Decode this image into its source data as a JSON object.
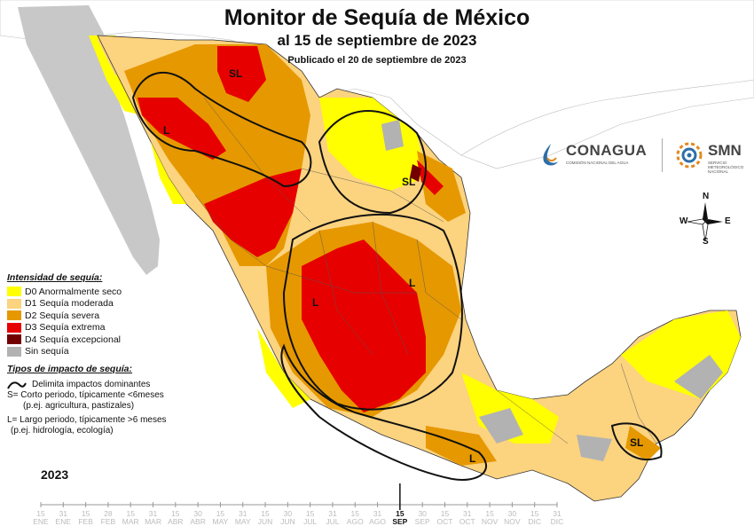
{
  "header": {
    "title": "Monitor de Sequía de México",
    "subtitle": "al 15 de septiembre de 2023",
    "published": "Publicado el 20 de septiembre de 2023"
  },
  "legend": {
    "title": "Intensidad de sequía:",
    "items": [
      {
        "label": "D0 Anormalmente seco",
        "color": "#FFFF00"
      },
      {
        "label": "D1 Sequía moderada",
        "color": "#FCD37F"
      },
      {
        "label": "D2 Sequía severa",
        "color": "#E69800"
      },
      {
        "label": "D3 Sequía extrema",
        "color": "#E60000"
      },
      {
        "label": "D4 Sequía excepcional",
        "color": "#730000"
      },
      {
        "label": "Sin sequía",
        "color": "#B2B2B2"
      }
    ]
  },
  "impact": {
    "title": "Tipos de impacto de sequía:",
    "line1": "Delimita impactos dominantes",
    "line2": "S= Corto periodo, típicamente <6meses",
    "line3": "(p.ej. agricultura, pastizales)",
    "line4": "L= Largo periodo, típicamente >6 meses",
    "line5": "(p.ej. hidrología, ecología)"
  },
  "map_labels": {
    "sl_north": "SL",
    "l_northwest": "L",
    "sl_northeast": "SL",
    "l_central": "L",
    "l_west": "L",
    "l_south": "L",
    "sl_southeast": "SL"
  },
  "logos": {
    "conagua": "CONAGUA",
    "conagua_sub": "COMISIÓN NACIONAL DEL AGUA",
    "smn": "SMN",
    "smn_sub": "SERVICIO METEOROLÓGICO NACIONAL"
  },
  "compass": {
    "n": "N",
    "s": "S",
    "e": "E",
    "w": "W"
  },
  "timeline": {
    "year": "2023",
    "selected_index": 34,
    "ticks": [
      {
        "d": "15",
        "m": "ENE"
      },
      {
        "d": "31",
        "m": "ENE"
      },
      {
        "d": "15",
        "m": "FEB"
      },
      {
        "d": "28",
        "m": "FEB"
      },
      {
        "d": "15",
        "m": "MAR"
      },
      {
        "d": "31",
        "m": "MAR"
      },
      {
        "d": "15",
        "m": "ABR"
      },
      {
        "d": "30",
        "m": "ABR"
      },
      {
        "d": "15",
        "m": "MAY"
      },
      {
        "d": "31",
        "m": "MAY"
      },
      {
        "d": "15",
        "m": "JUN"
      },
      {
        "d": "30",
        "m": "JUN"
      },
      {
        "d": "15",
        "m": "JUL"
      },
      {
        "d": "31",
        "m": "JUL"
      },
      {
        "d": "15",
        "m": "AGO"
      },
      {
        "d": "31",
        "m": "AGO"
      },
      {
        "d": "15",
        "m": "SEP"
      },
      {
        "d": "30",
        "m": "SEP"
      },
      {
        "d": "15",
        "m": "OCT"
      },
      {
        "d": "31",
        "m": "OCT"
      },
      {
        "d": "15",
        "m": "NOV"
      },
      {
        "d": "30",
        "m": "NOV"
      },
      {
        "d": "15",
        "m": "DIC"
      },
      {
        "d": "31",
        "m": "DIC"
      }
    ]
  }
}
